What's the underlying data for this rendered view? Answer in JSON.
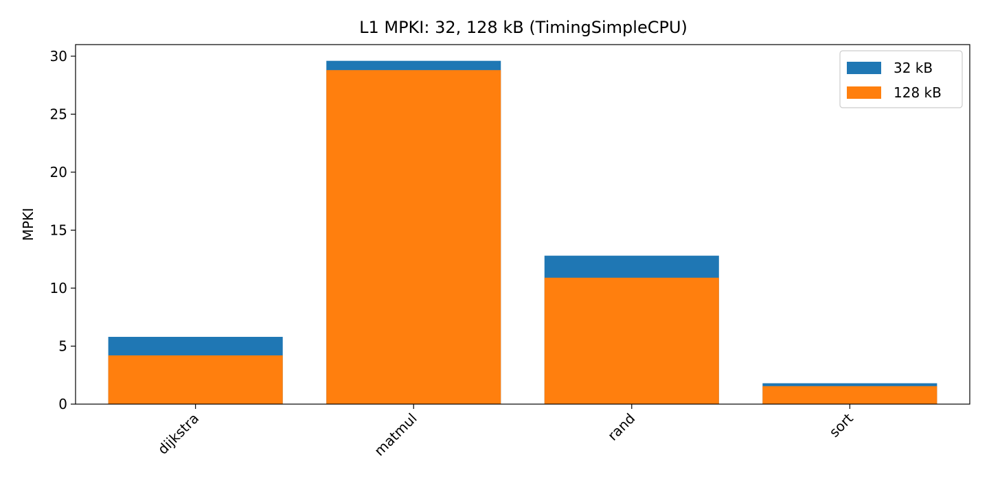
{
  "chart_data": {
    "type": "bar",
    "title": "L1 MPKI: 32, 128 kB (TimingSimpleCPU)",
    "xlabel": "",
    "ylabel": "MPKI",
    "categories": [
      "dijkstra",
      "matmul",
      "rand",
      "sort"
    ],
    "series": [
      {
        "name": "32 kB",
        "color": "#1f77b4",
        "values": [
          5.8,
          29.6,
          12.8,
          1.8
        ]
      },
      {
        "name": "128 kB",
        "color": "#ff7f0e",
        "values": [
          4.2,
          28.8,
          10.9,
          1.55
        ]
      }
    ],
    "ylim": [
      0,
      31
    ],
    "yticks": [
      0,
      5,
      10,
      15,
      20,
      25,
      30
    ],
    "grid": false,
    "legend_position": "top-right",
    "xtick_rotation_deg": 45
  }
}
